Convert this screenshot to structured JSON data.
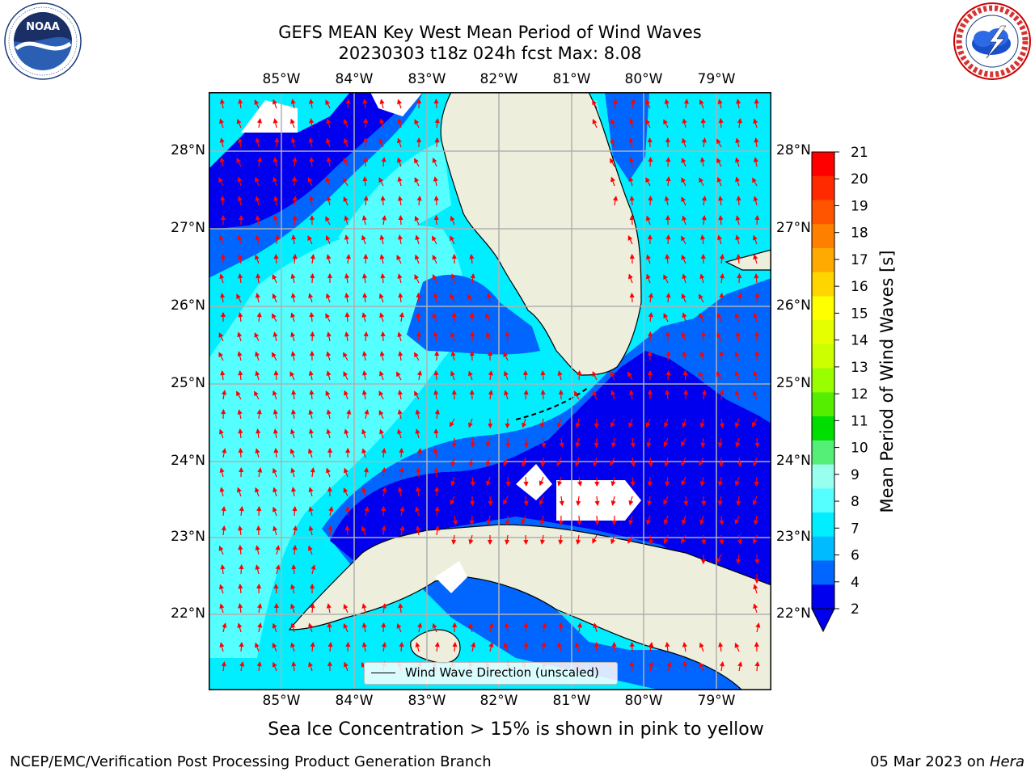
{
  "header": {
    "title_line1": "GEFS MEAN Key West Mean Period of Wind Waves",
    "title_line2": "20230303 t18z 024h fcst   Max: 8.08"
  },
  "subtitle": "Sea Ice Concentration > 15% is shown in pink to yellow",
  "footer": {
    "left": "NCEP/EMC/Verification Post Processing Product Generation Branch",
    "right_prefix": "05 Mar 2023 on ",
    "right_machine": "Hera"
  },
  "map": {
    "lon_labels": [
      "85°W",
      "84°W",
      "83°W",
      "82°W",
      "81°W",
      "80°W",
      "79°W"
    ],
    "lat_labels": [
      "28°N",
      "27°N",
      "26°N",
      "25°N",
      "24°N",
      "23°N",
      "22°N"
    ],
    "legend_label": "Wind Wave Direction (unscaled)",
    "land_color": "#eeeedd",
    "arrow_color": "#ff0000",
    "gridline_color": "#b0b0b0"
  },
  "colorbar": {
    "label": "Mean Period of Wind Waves [s]",
    "ticks": [
      "21",
      "20",
      "19",
      "18",
      "17",
      "16",
      "15",
      "14",
      "13",
      "12",
      "11",
      "10",
      "9",
      "8",
      "7",
      "6",
      "4",
      "2"
    ],
    "colors": [
      "#ff0000",
      "#ff2a00",
      "#ff5500",
      "#ff8000",
      "#ffaa00",
      "#ffd500",
      "#ffff00",
      "#e6ff00",
      "#ccff00",
      "#99ff00",
      "#55ee00",
      "#00dd00",
      "#55ee77",
      "#99ffee",
      "#55ffff",
      "#00eeff",
      "#00bbff",
      "#0066ff",
      "#0000ee"
    ],
    "under_color": "#0000ee"
  },
  "logos": {
    "noaa_text": "NOAA",
    "nws_text": "NATIONAL WEATHER SERVICE"
  }
}
